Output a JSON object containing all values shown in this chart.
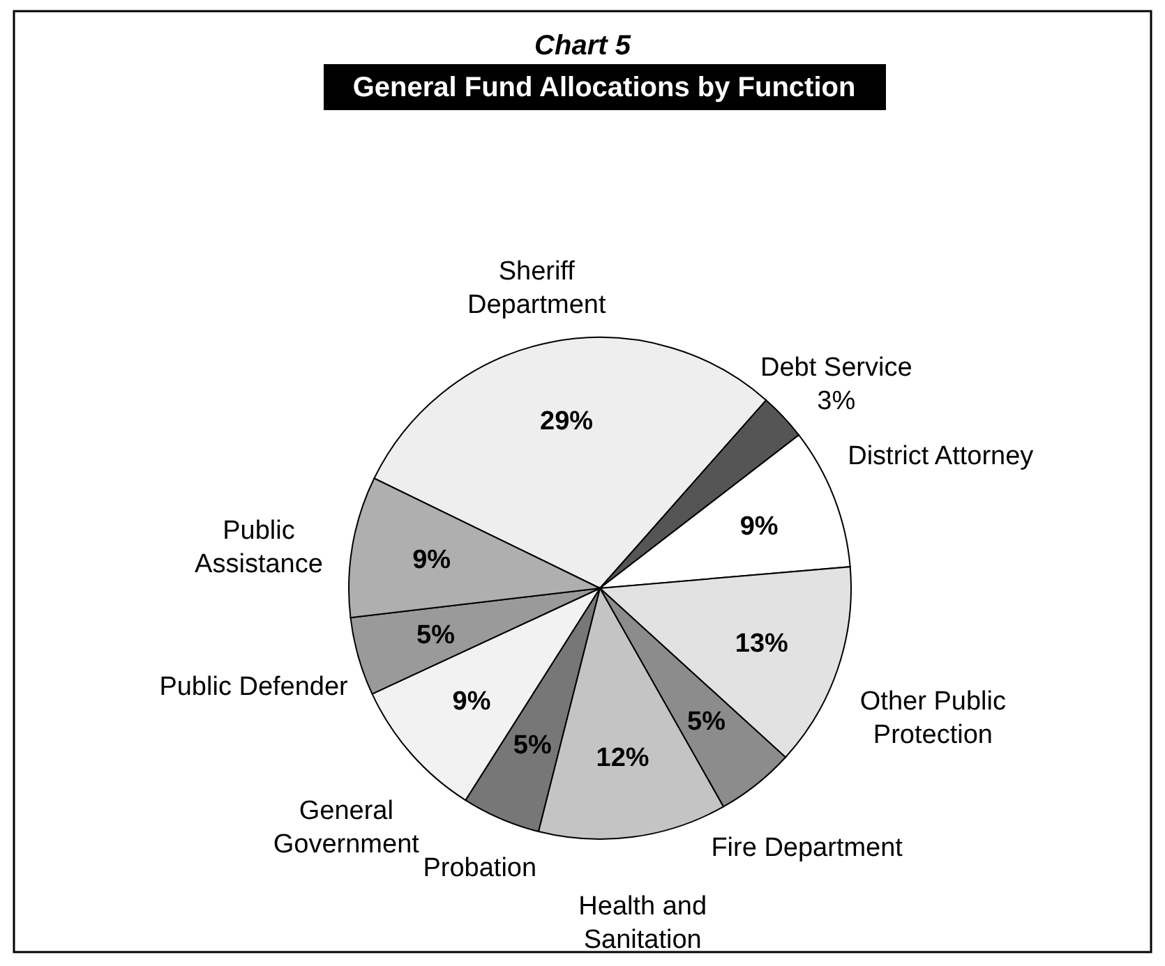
{
  "chart_data": {
    "type": "pie",
    "title": "Chart 5",
    "subtitle": "General Fund Allocations by Function",
    "categories": [
      "Sheriff Department",
      "Debt Service",
      "District Attorney",
      "Other Public Protection",
      "Fire Department",
      "Health and Sanitation",
      "Probation",
      "General Government",
      "Public Defender",
      "Public Assistance"
    ],
    "values": [
      29,
      3,
      9,
      13,
      5,
      12,
      5,
      9,
      5,
      9
    ],
    "value_labels": [
      "29%",
      "3%",
      "9%",
      "13%",
      "5%",
      "12%",
      "5%",
      "9%",
      "5%",
      "9%"
    ],
    "colors": [
      "#eeeeee",
      "#555555",
      "#ffffff",
      "#e2e2e2",
      "#8c8c8c",
      "#c4c4c4",
      "#777777",
      "#f2f2f2",
      "#9a9a9a",
      "#afafaf"
    ],
    "legend": false
  }
}
